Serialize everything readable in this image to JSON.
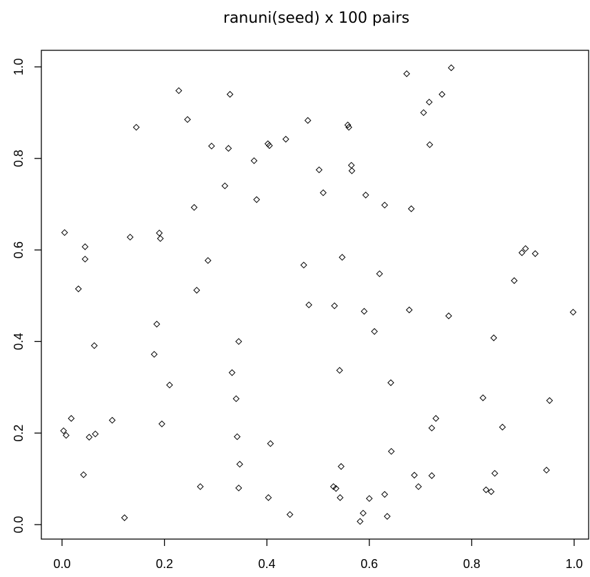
{
  "chart_data": {
    "type": "scatter",
    "title": "ranuni(seed) x 100 pairs",
    "xlabel": "",
    "ylabel": "",
    "xlim": [
      0,
      1
    ],
    "ylim": [
      0,
      1
    ],
    "grid": false,
    "marker": "diamond",
    "x_ticks": [
      "0.0",
      "0.2",
      "0.4",
      "0.6",
      "0.8",
      "1.0"
    ],
    "y_ticks": [
      "0.0",
      "0.2",
      "0.4",
      "0.6",
      "0.8",
      "1.0"
    ],
    "points": [
      [
        0.005,
        0.638
      ],
      [
        0.045,
        0.607
      ],
      [
        0.045,
        0.58
      ],
      [
        0.032,
        0.515
      ],
      [
        0.063,
        0.391
      ],
      [
        0.003,
        0.205
      ],
      [
        0.008,
        0.195
      ],
      [
        0.018,
        0.232
      ],
      [
        0.053,
        0.191
      ],
      [
        0.065,
        0.198
      ],
      [
        0.042,
        0.109
      ],
      [
        0.098,
        0.228
      ],
      [
        0.122,
        0.015
      ],
      [
        0.133,
        0.628
      ],
      [
        0.145,
        0.868
      ],
      [
        0.19,
        0.637
      ],
      [
        0.192,
        0.625
      ],
      [
        0.185,
        0.438
      ],
      [
        0.18,
        0.372
      ],
      [
        0.195,
        0.22
      ],
      [
        0.21,
        0.305
      ],
      [
        0.228,
        0.948
      ],
      [
        0.245,
        0.885
      ],
      [
        0.258,
        0.693
      ],
      [
        0.263,
        0.512
      ],
      [
        0.27,
        0.083
      ],
      [
        0.285,
        0.577
      ],
      [
        0.292,
        0.827
      ],
      [
        0.318,
        0.74
      ],
      [
        0.325,
        0.822
      ],
      [
        0.328,
        0.94
      ],
      [
        0.332,
        0.332
      ],
      [
        0.34,
        0.275
      ],
      [
        0.342,
        0.192
      ],
      [
        0.345,
        0.4
      ],
      [
        0.347,
        0.132
      ],
      [
        0.345,
        0.08
      ],
      [
        0.375,
        0.795
      ],
      [
        0.38,
        0.71
      ],
      [
        0.402,
        0.832
      ],
      [
        0.405,
        0.828
      ],
      [
        0.407,
        0.177
      ],
      [
        0.403,
        0.059
      ],
      [
        0.437,
        0.842
      ],
      [
        0.445,
        0.022
      ],
      [
        0.472,
        0.567
      ],
      [
        0.48,
        0.883
      ],
      [
        0.482,
        0.48
      ],
      [
        0.502,
        0.775
      ],
      [
        0.51,
        0.725
      ],
      [
        0.532,
        0.478
      ],
      [
        0.53,
        0.083
      ],
      [
        0.535,
        0.079
      ],
      [
        0.542,
        0.337
      ],
      [
        0.545,
        0.127
      ],
      [
        0.543,
        0.059
      ],
      [
        0.547,
        0.584
      ],
      [
        0.558,
        0.873
      ],
      [
        0.56,
        0.868
      ],
      [
        0.565,
        0.785
      ],
      [
        0.566,
        0.773
      ],
      [
        0.582,
        0.007
      ],
      [
        0.588,
        0.025
      ],
      [
        0.59,
        0.466
      ],
      [
        0.593,
        0.72
      ],
      [
        0.6,
        0.057
      ],
      [
        0.61,
        0.422
      ],
      [
        0.62,
        0.548
      ],
      [
        0.63,
        0.698
      ],
      [
        0.63,
        0.066
      ],
      [
        0.635,
        0.018
      ],
      [
        0.642,
        0.31
      ],
      [
        0.643,
        0.16
      ],
      [
        0.673,
        0.985
      ],
      [
        0.678,
        0.469
      ],
      [
        0.682,
        0.69
      ],
      [
        0.688,
        0.108
      ],
      [
        0.696,
        0.083
      ],
      [
        0.706,
        0.9
      ],
      [
        0.717,
        0.923
      ],
      [
        0.718,
        0.83
      ],
      [
        0.722,
        0.211
      ],
      [
        0.722,
        0.107
      ],
      [
        0.73,
        0.232
      ],
      [
        0.742,
        0.94
      ],
      [
        0.755,
        0.456
      ],
      [
        0.76,
        0.998
      ],
      [
        0.822,
        0.277
      ],
      [
        0.828,
        0.076
      ],
      [
        0.838,
        0.072
      ],
      [
        0.843,
        0.408
      ],
      [
        0.845,
        0.112
      ],
      [
        0.86,
        0.213
      ],
      [
        0.883,
        0.533
      ],
      [
        0.898,
        0.594
      ],
      [
        0.905,
        0.603
      ],
      [
        0.924,
        0.592
      ],
      [
        0.946,
        0.119
      ],
      [
        0.952,
        0.271
      ],
      [
        0.998,
        0.464
      ]
    ]
  }
}
